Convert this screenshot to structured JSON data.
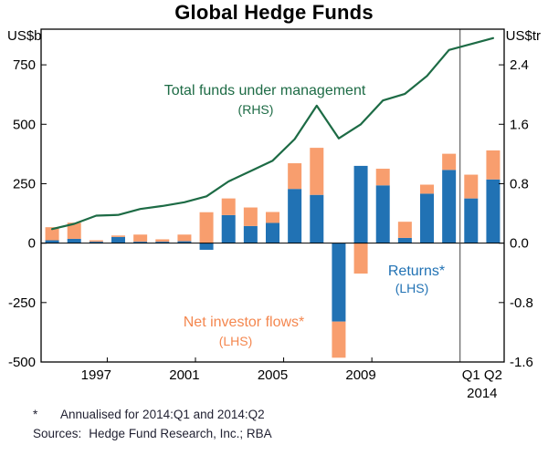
{
  "title": "Global Hedge Funds",
  "axes": {
    "left_unit": "US$b",
    "right_unit": "US$tr",
    "left_ticks": [
      750,
      500,
      250,
      0,
      -250,
      -500
    ],
    "right_ticks": [
      "2.4",
      "1.6",
      "0.8",
      "0.0",
      "-0.8",
      "-1.6"
    ],
    "x_labels": [
      {
        "text": "1997",
        "slot": 2
      },
      {
        "text": "2001",
        "slot": 6
      },
      {
        "text": "2005",
        "slot": 10
      },
      {
        "text": "2009",
        "slot": 14
      },
      {
        "text": "Q1",
        "slot": 19
      },
      {
        "text": "Q2",
        "slot": 20
      }
    ],
    "x_sub_label": "2014"
  },
  "chart_data": {
    "type": "bar+line",
    "categories": [
      "1995",
      "1996",
      "1997",
      "1998",
      "1999",
      "2000",
      "2001",
      "2002",
      "2003",
      "2004",
      "2005",
      "2006",
      "2007",
      "2008",
      "2009",
      "2010",
      "2011",
      "2012",
      "2013",
      "2014Q1",
      "2014Q2"
    ],
    "ylim_left": [
      -500,
      900
    ],
    "ylim_right": [
      -1.6,
      2.88
    ],
    "right_per_left": 0.0032,
    "separator_after": "2013",
    "series": [
      {
        "name": "Returns (LHS)",
        "type": "bar",
        "axis": "left",
        "color": "#2172b4",
        "values": [
          12,
          18,
          6,
          26,
          6,
          6,
          8,
          -28,
          118,
          72,
          85,
          228,
          203,
          -330,
          325,
          243,
          22,
          208,
          308,
          188,
          268
        ]
      },
      {
        "name": "Net investor flows (LHS)",
        "type": "bar",
        "axis": "left",
        "color": "#f89e6e",
        "values": [
          55,
          68,
          6,
          6,
          30,
          10,
          28,
          130,
          70,
          78,
          46,
          108,
          198,
          -152,
          -128,
          70,
          68,
          38,
          68,
          100,
          122
        ]
      },
      {
        "name": "Total funds under management (RHS)",
        "type": "line",
        "axis": "right",
        "color": "#1d6b45",
        "values": [
          0.19,
          0.26,
          0.37,
          0.38,
          0.46,
          0.5,
          0.55,
          0.63,
          0.83,
          0.97,
          1.11,
          1.4,
          1.85,
          1.41,
          1.6,
          1.92,
          2.01,
          2.25,
          2.6,
          2.68,
          2.76
        ]
      }
    ]
  },
  "annotations": {
    "fum": {
      "text": "Total funds under management",
      "sub": "(RHS)",
      "color": "#1d6b45"
    },
    "returns": {
      "text": "Returns*",
      "sub": "(LHS)",
      "color": "#2172b4"
    },
    "flows": {
      "text": "Net investor flows*",
      "sub": "(LHS)",
      "color": "#f4874f"
    }
  },
  "footnotes": {
    "mark": "*",
    "note": "Annualised for 2014:Q1 and 2014:Q2",
    "sources_label": "Sources:",
    "sources": "Hedge Fund Research, Inc.; RBA"
  }
}
